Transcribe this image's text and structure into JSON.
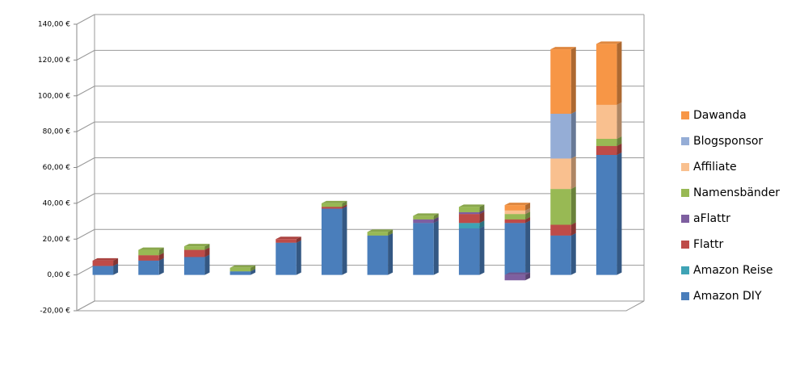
{
  "chart_data": {
    "type": "bar3d_stacked",
    "categories": [
      null,
      null,
      null,
      null,
      null,
      null,
      null,
      null,
      null,
      null,
      null,
      null
    ],
    "series": [
      {
        "name": "Amazon DIY",
        "color": "#4a7ebb",
        "values": [
          5,
          8,
          10,
          2,
          18,
          37,
          22,
          29,
          26,
          29,
          22,
          67
        ]
      },
      {
        "name": "Amazon Reise",
        "color": "#3fa3b5",
        "values": [
          0,
          0,
          0,
          0,
          0,
          0,
          0,
          0,
          3,
          0,
          0,
          0
        ]
      },
      {
        "name": "Flattr",
        "color": "#be4b48",
        "values": [
          3,
          3,
          4,
          0,
          2,
          1,
          0,
          0,
          5,
          2,
          6,
          5
        ]
      },
      {
        "name": "aFlattr",
        "color": "#7e5fa0",
        "values": [
          0,
          0,
          0,
          0,
          0,
          0,
          0,
          2,
          1,
          -3,
          0,
          0
        ]
      },
      {
        "name": "Namensbänder",
        "color": "#98b954",
        "values": [
          0,
          3,
          2,
          2,
          0,
          2,
          2,
          2,
          3,
          3,
          20,
          4
        ]
      },
      {
        "name": "Affiliate",
        "color": "#f9c08f",
        "values": [
          0,
          0,
          0,
          0,
          0,
          0,
          0,
          0,
          0,
          2,
          17,
          19
        ]
      },
      {
        "name": "Blogsponsor",
        "color": "#95add6",
        "values": [
          0,
          0,
          0,
          0,
          0,
          0,
          0,
          0,
          0,
          0,
          25,
          0
        ]
      },
      {
        "name": "Dawanda",
        "color": "#f79646",
        "values": [
          0,
          0,
          0,
          0,
          0,
          0,
          0,
          0,
          0,
          3,
          36,
          34
        ]
      }
    ],
    "ylim": [
      -20,
      140
    ],
    "yticks": [
      {
        "value": -20,
        "label": "-20,00 €"
      },
      {
        "value": 0,
        "label": "0,00 €"
      },
      {
        "value": 20,
        "label": "20,00 €"
      },
      {
        "value": 40,
        "label": "40,00 €"
      },
      {
        "value": 60,
        "label": "60,00 €"
      },
      {
        "value": 80,
        "label": "80,00 €"
      },
      {
        "value": 100,
        "label": "100,00 €"
      },
      {
        "value": 120,
        "label": "120,00 €"
      },
      {
        "value": 140,
        "label": "140,00 €"
      }
    ],
    "grid": true,
    "legend": "right"
  }
}
